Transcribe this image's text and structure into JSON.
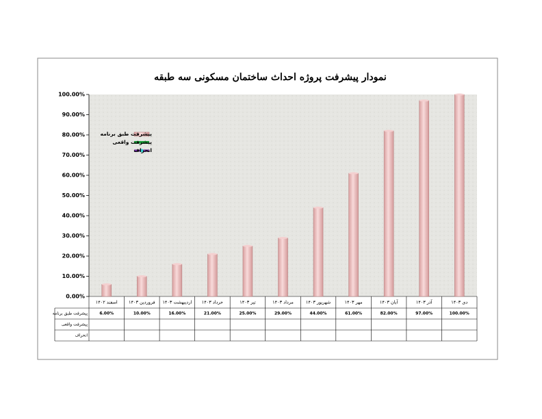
{
  "chart_data": {
    "type": "bar",
    "title": "نمودار پیشرفت پروژه احداث ساختمان مسکونی سه طبقه",
    "categories": [
      "اسفند ۱۴۰۲",
      "فروردین ۱۴۰۳",
      "اردیبهشت ۱۴۰۳",
      "خرداد ۱۴۰۳",
      "تیر ۱۴۰۳",
      "مرداد ۱۴۰۳",
      "شهریور ۱۴۰۳",
      "مهر ۱۴۰۳",
      "آبان ۱۴۰۳",
      "آذر ۱۴۰۳",
      "دی ۱۴۰۳"
    ],
    "series": [
      {
        "name": "پیشرفت طبق برنامه",
        "color": "#f2c4c4",
        "values": [
          6,
          10,
          16,
          21,
          25,
          29,
          44,
          61,
          82,
          97,
          100
        ],
        "value_labels": [
          "6.00%",
          "10.00%",
          "16.00%",
          "21.00%",
          "25.00%",
          "29.00%",
          "44.00%",
          "61.00%",
          "82.00%",
          "97.00%",
          "100.00%"
        ]
      },
      {
        "name": "پیشرفت واقعی",
        "color": "#1e9e3c",
        "values": [
          null,
          null,
          null,
          null,
          null,
          null,
          null,
          null,
          null,
          null,
          null
        ]
      },
      {
        "name": "انحراف",
        "color": "#7030a0",
        "values": [
          null,
          null,
          null,
          null,
          null,
          null,
          null,
          null,
          null,
          null,
          null
        ]
      }
    ],
    "ylim": [
      0,
      100
    ],
    "yticks": [
      {
        "value": 0,
        "label": "0.00%"
      },
      {
        "value": 10,
        "label": "10.00%"
      },
      {
        "value": 20,
        "label": "20.00%"
      },
      {
        "value": 30,
        "label": "30.00%"
      },
      {
        "value": 40,
        "label": "40.00%"
      },
      {
        "value": 50,
        "label": "50.00%"
      },
      {
        "value": 60,
        "label": "60.00%"
      },
      {
        "value": 70,
        "label": "70.00%"
      },
      {
        "value": 80,
        "label": "80.00%"
      },
      {
        "value": 90,
        "label": "90.00%"
      },
      {
        "value": 100,
        "label": "100.00%"
      }
    ],
    "grid": false
  }
}
